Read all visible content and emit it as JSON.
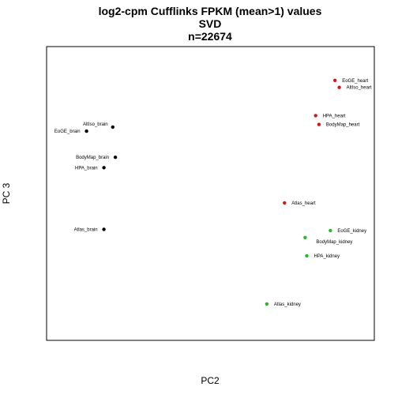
{
  "chart_data": {
    "type": "scatter",
    "title": [
      "log2-cpm Cufflinks FPKM (mean>1) values",
      "SVD",
      "n=22674"
    ],
    "xlabel": "PC2",
    "ylabel": "PC 3",
    "grid": false,
    "legend": "none",
    "axes_ticks": false,
    "groups": {
      "heart": "#dd1111",
      "brain": "#000000",
      "kidney": "#22bb22"
    },
    "points": [
      {
        "label": "EoGE_heart",
        "group": "heart",
        "x": 0.88,
        "y": 0.885,
        "label_side": "right"
      },
      {
        "label": "AltIso_heart",
        "group": "heart",
        "x": 0.893,
        "y": 0.861,
        "label_side": "right"
      },
      {
        "label": "HPA_heart",
        "group": "heart",
        "x": 0.821,
        "y": 0.765,
        "label_side": "right"
      },
      {
        "label": "BodyMap_heart",
        "group": "heart",
        "x": 0.831,
        "y": 0.735,
        "label_side": "right"
      },
      {
        "label": "Atlas_heart",
        "group": "heart",
        "x": 0.726,
        "y": 0.468,
        "label_side": "right"
      },
      {
        "label": "AltIso_brain",
        "group": "brain",
        "x": 0.202,
        "y": 0.726,
        "label_side": "top"
      },
      {
        "label": "EoGE_brain",
        "group": "brain",
        "x": 0.122,
        "y": 0.712,
        "label_side": "left"
      },
      {
        "label": "BodyMap_brain",
        "group": "brain",
        "x": 0.21,
        "y": 0.623,
        "label_side": "left"
      },
      {
        "label": "HPA_brain",
        "group": "brain",
        "x": 0.175,
        "y": 0.588,
        "label_side": "left"
      },
      {
        "label": "Atlas_brain",
        "group": "brain",
        "x": 0.175,
        "y": 0.378,
        "label_side": "left"
      },
      {
        "label": "EoGE_kidney",
        "group": "kidney",
        "x": 0.866,
        "y": 0.374,
        "label_side": "right"
      },
      {
        "label": "BodyMap_kidney",
        "group": "kidney",
        "x": 0.789,
        "y": 0.35,
        "label_side": "below-right"
      },
      {
        "label": "HPA_kidney",
        "group": "kidney",
        "x": 0.794,
        "y": 0.288,
        "label_side": "right"
      },
      {
        "label": "Atlas_kidney",
        "group": "kidney",
        "x": 0.672,
        "y": 0.124,
        "label_side": "right"
      }
    ]
  }
}
